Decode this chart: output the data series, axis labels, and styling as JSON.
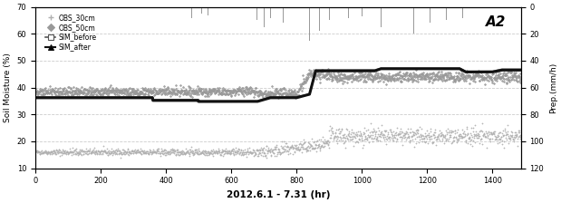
{
  "title": "A2",
  "xlabel": "2012.6.1 - 7.31 (hr)",
  "ylabel_left": "Soil Moisture (%)",
  "ylabel_right": "Prep.(mm/h)",
  "xlim": [
    0,
    1488
  ],
  "ylim_left": [
    10,
    70
  ],
  "ylim_right": [
    120,
    0
  ],
  "yticks_left": [
    10,
    20,
    30,
    40,
    50,
    60,
    70
  ],
  "yticks_right": [
    0,
    20,
    40,
    60,
    80,
    100,
    120
  ],
  "xticks": [
    0,
    200,
    400,
    600,
    800,
    1000,
    1200,
    1400
  ],
  "bg_color": "#ffffff",
  "grid_color": "#cccccc",
  "obs30_color": "#b0b0b0",
  "obs50_color": "#999999",
  "sim_before_color": "#555555",
  "sim_after_color": "#111111",
  "precip_color": "#888888"
}
